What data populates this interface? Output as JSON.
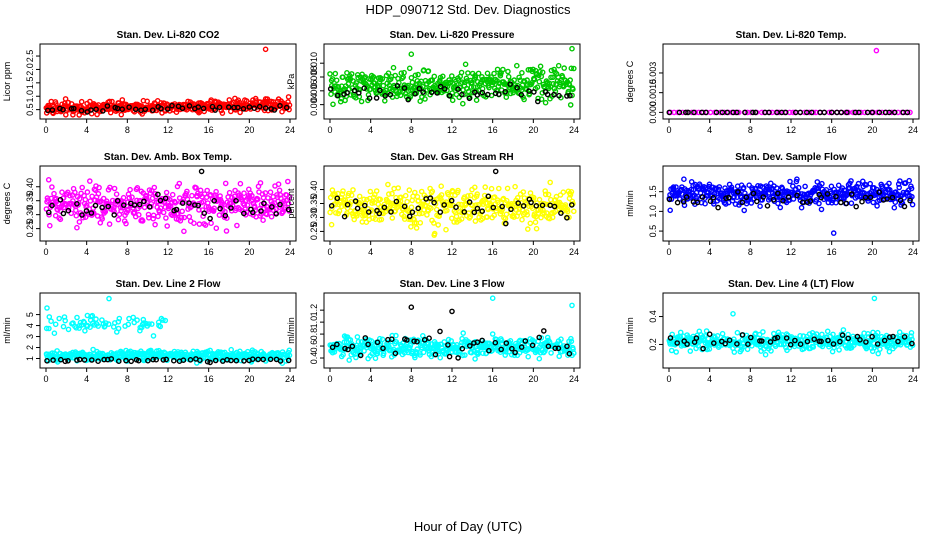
{
  "page_title": "HDP_090712  Std. Dev. Diagnostics",
  "x_axis_label": "Hour of Day (UTC)",
  "chart_data": [
    {
      "type": "scatter",
      "title": "Stan. Dev. Li-820 CO2",
      "ylabel": "Licor ppm",
      "xlim": [
        0,
        24
      ],
      "ylim": [
        0.3,
        2.8
      ],
      "x_ticks": [
        "0",
        "4",
        "8",
        "12",
        "16",
        "20",
        "24"
      ],
      "y_ticks": [
        {
          "value": 0.5,
          "label": "0.5"
        },
        {
          "value": 1.0,
          "label": "1.0"
        },
        {
          "value": 1.5,
          "label": "1.5"
        },
        {
          "value": 2.0,
          "label": "2.0"
        },
        {
          "value": 2.5,
          "label": "2.5"
        }
      ],
      "series": [
        {
          "name": "all",
          "color": "#ff0000",
          "count": 420,
          "base": 0.62,
          "spread": 0.22,
          "trend": 0.15
        },
        {
          "name": "selected",
          "color": "#000000",
          "count": 45,
          "base": 0.55,
          "spread": 0.12,
          "trend": 0.1
        }
      ],
      "outliers": [
        {
          "x": 21.6,
          "y": 2.75,
          "color": "#ff0000"
        }
      ]
    },
    {
      "type": "scatter",
      "title": "Stan. Dev. Li-820 Pressure",
      "ylabel": "kPa",
      "xlim": [
        0,
        24
      ],
      "ylim": [
        0.0025,
        0.0122
      ],
      "x_ticks": [
        "0",
        "4",
        "8",
        "12",
        "16",
        "20",
        "24"
      ],
      "y_ticks": [
        {
          "value": 0.004,
          "label": "0.004"
        },
        {
          "value": 0.006,
          "label": "0.006"
        },
        {
          "value": 0.008,
          "label": "0.008"
        },
        {
          "value": 0.01,
          "label": "0.010"
        }
      ],
      "series": [
        {
          "name": "all",
          "color": "#00c800",
          "count": 420,
          "base": 0.0068,
          "spread": 0.0022,
          "trend": 0.0006
        },
        {
          "name": "selected",
          "color": "#000000",
          "count": 45,
          "base": 0.0058,
          "spread": 0.0011,
          "trend": 0.0002
        }
      ],
      "outliers": [
        {
          "x": 23.8,
          "y": 0.0121,
          "color": "#00c800"
        },
        {
          "x": 8.0,
          "y": 0.0113,
          "color": "#00c800"
        }
      ]
    },
    {
      "type": "scatter",
      "title": "Stan. Dev. Li-820 Temp.",
      "ylabel": "degrees C",
      "xlim": [
        0,
        24
      ],
      "ylim": [
        -0.0002,
        0.0049
      ],
      "x_ticks": [
        "0",
        "4",
        "8",
        "12",
        "16",
        "20",
        "24"
      ],
      "y_ticks": [
        {
          "value": 0.0,
          "label": "0.000"
        },
        {
          "value": 0.0015,
          "label": "0.0015"
        },
        {
          "value": 0.003,
          "label": "0.003"
        }
      ],
      "series": [
        {
          "name": "all",
          "color": "#ff00ff",
          "count": 60,
          "base": 0.0,
          "spread": 0.0,
          "trend": 0.0
        },
        {
          "name": "selected",
          "color": "#000000",
          "count": 40,
          "base": 0.0,
          "spread": 0.0,
          "trend": 0.0
        }
      ],
      "outliers": [
        {
          "x": 20.4,
          "y": 0.0047,
          "color": "#ff00ff"
        }
      ]
    },
    {
      "type": "scatter",
      "title": "Stan. Dev. Amb. Box Temp.",
      "ylabel": "degrees C",
      "xlim": [
        0,
        24
      ],
      "ylim": [
        0.22,
        0.46
      ],
      "x_ticks": [
        "0",
        "4",
        "8",
        "12",
        "16",
        "20",
        "24"
      ],
      "y_ticks": [
        {
          "value": 0.25,
          "label": "0.25"
        },
        {
          "value": 0.3,
          "label": "0.30"
        },
        {
          "value": 0.35,
          "label": "0.35"
        },
        {
          "value": 0.4,
          "label": "0.40"
        }
      ],
      "series": [
        {
          "name": "all",
          "color": "#ff00ff",
          "count": 420,
          "base": 0.335,
          "spread": 0.065,
          "trend": 0.0
        },
        {
          "name": "selected",
          "color": "#000000",
          "count": 45,
          "base": 0.33,
          "spread": 0.035,
          "trend": 0.0
        }
      ],
      "outliers": [
        {
          "x": 15.3,
          "y": 0.455,
          "color": "#000000"
        }
      ]
    },
    {
      "type": "scatter",
      "title": "Stan. Dev. Gas Stream RH",
      "ylabel": "percent",
      "xlim": [
        0,
        24
      ],
      "ylim": [
        0.23,
        0.47
      ],
      "x_ticks": [
        "0",
        "4",
        "8",
        "12",
        "16",
        "20",
        "24"
      ],
      "y_ticks": [
        {
          "value": 0.25,
          "label": "0.25"
        },
        {
          "value": 0.3,
          "label": "0.30"
        },
        {
          "value": 0.35,
          "label": "0.35"
        },
        {
          "value": 0.4,
          "label": "0.40"
        }
      ],
      "series": [
        {
          "name": "all",
          "color": "#ffff00",
          "count": 420,
          "base": 0.34,
          "spread": 0.065,
          "trend": 0.0
        },
        {
          "name": "selected",
          "color": "#000000",
          "count": 45,
          "base": 0.335,
          "spread": 0.045,
          "trend": 0.0
        }
      ],
      "outliers": [
        {
          "x": 16.3,
          "y": 0.465,
          "color": "#000000"
        }
      ]
    },
    {
      "type": "scatter",
      "title": "Stan. Dev. Sample Flow",
      "ylabel": "ml/min",
      "xlim": [
        0,
        24
      ],
      "ylim": [
        0.35,
        2.05
      ],
      "x_ticks": [
        "0",
        "4",
        "8",
        "12",
        "16",
        "20",
        "24"
      ],
      "y_ticks": [
        {
          "value": 0.5,
          "label": "0.5"
        },
        {
          "value": 1.0,
          "label": "1.0"
        },
        {
          "value": 1.5,
          "label": "1.5"
        }
      ],
      "series": [
        {
          "name": "all",
          "color": "#0000ff",
          "count": 420,
          "base": 1.45,
          "spread": 0.28,
          "trend": 0.0
        },
        {
          "name": "selected",
          "color": "#000000",
          "count": 45,
          "base": 1.3,
          "spread": 0.2,
          "trend": 0.0
        }
      ],
      "outliers": [
        {
          "x": 16.2,
          "y": 0.45,
          "color": "#0000ff"
        }
      ]
    },
    {
      "type": "scatter",
      "title": "Stan. Dev. Line 2 Flow",
      "ylabel": "ml/min",
      "xlim": [
        0,
        24
      ],
      "ylim": [
        0.5,
        6.6
      ],
      "x_ticks": [
        "0",
        "4",
        "8",
        "12",
        "16",
        "20",
        "24"
      ],
      "y_ticks": [
        {
          "value": 1,
          "label": "1"
        },
        {
          "value": 2,
          "label": "2"
        },
        {
          "value": 3,
          "label": "3"
        },
        {
          "value": 4,
          "label": "4"
        },
        {
          "value": 5,
          "label": "5"
        }
      ],
      "series": [
        {
          "name": "all",
          "color": "#00ffff",
          "count": 420,
          "base": 1.25,
          "spread": 0.45,
          "trend": 0.0
        },
        {
          "name": "selected",
          "color": "#000000",
          "count": 45,
          "base": 0.85,
          "spread": 0.12,
          "trend": 0.0
        }
      ],
      "band": {
        "color": "#00ffff",
        "x_from": 0,
        "x_to": 12,
        "base": 4.2,
        "spread": 0.7,
        "count": 70
      },
      "outliers": [
        {
          "x": 6.2,
          "y": 6.45,
          "color": "#00ffff"
        },
        {
          "x": 0.1,
          "y": 5.6,
          "color": "#00ffff"
        }
      ]
    },
    {
      "type": "scatter",
      "title": "Stan. Dev. Line 3 Flow",
      "ylabel": "ml/min",
      "xlim": [
        0,
        24
      ],
      "ylim": [
        0.3,
        1.42
      ],
      "x_ticks": [
        "0",
        "4",
        "8",
        "12",
        "16",
        "20",
        "24"
      ],
      "y_ticks": [
        {
          "value": 0.4,
          "label": "0.4"
        },
        {
          "value": 0.6,
          "label": "0.6"
        },
        {
          "value": 0.8,
          "label": "0.8"
        },
        {
          "value": 1.0,
          "label": "1.0"
        },
        {
          "value": 1.2,
          "label": "1.2"
        }
      ],
      "series": [
        {
          "name": "all",
          "color": "#00ffff",
          "count": 420,
          "base": 0.58,
          "spread": 0.16,
          "trend": 0.0
        },
        {
          "name": "selected",
          "color": "#000000",
          "count": 45,
          "base": 0.62,
          "spread": 0.18,
          "trend": 0.0
        }
      ],
      "outliers": [
        {
          "x": 16.0,
          "y": 1.4,
          "color": "#00ffff"
        },
        {
          "x": 23.8,
          "y": 1.28,
          "color": "#00ffff"
        },
        {
          "x": 8.0,
          "y": 1.25,
          "color": "#000000"
        },
        {
          "x": 12.0,
          "y": 1.18,
          "color": "#000000"
        }
      ]
    },
    {
      "type": "scatter",
      "title": "Stan. Dev. Line 4 (LT) Flow",
      "ylabel": "ml/min",
      "xlim": [
        0,
        24
      ],
      "ylim": [
        0.06,
        0.54
      ],
      "x_ticks": [
        "0",
        "4",
        "8",
        "12",
        "16",
        "20",
        "24"
      ],
      "y_ticks": [
        {
          "value": 0.2,
          "label": "0.2"
        },
        {
          "value": 0.4,
          "label": "0.4"
        }
      ],
      "series": [
        {
          "name": "all",
          "color": "#00ffff",
          "count": 420,
          "base": 0.22,
          "spread": 0.06,
          "trend": 0.0
        },
        {
          "name": "selected",
          "color": "#000000",
          "count": 45,
          "base": 0.22,
          "spread": 0.05,
          "trend": 0.0
        }
      ],
      "outliers": [
        {
          "x": 20.2,
          "y": 0.53,
          "color": "#00ffff"
        },
        {
          "x": 6.3,
          "y": 0.42,
          "color": "#00ffff"
        }
      ]
    }
  ]
}
